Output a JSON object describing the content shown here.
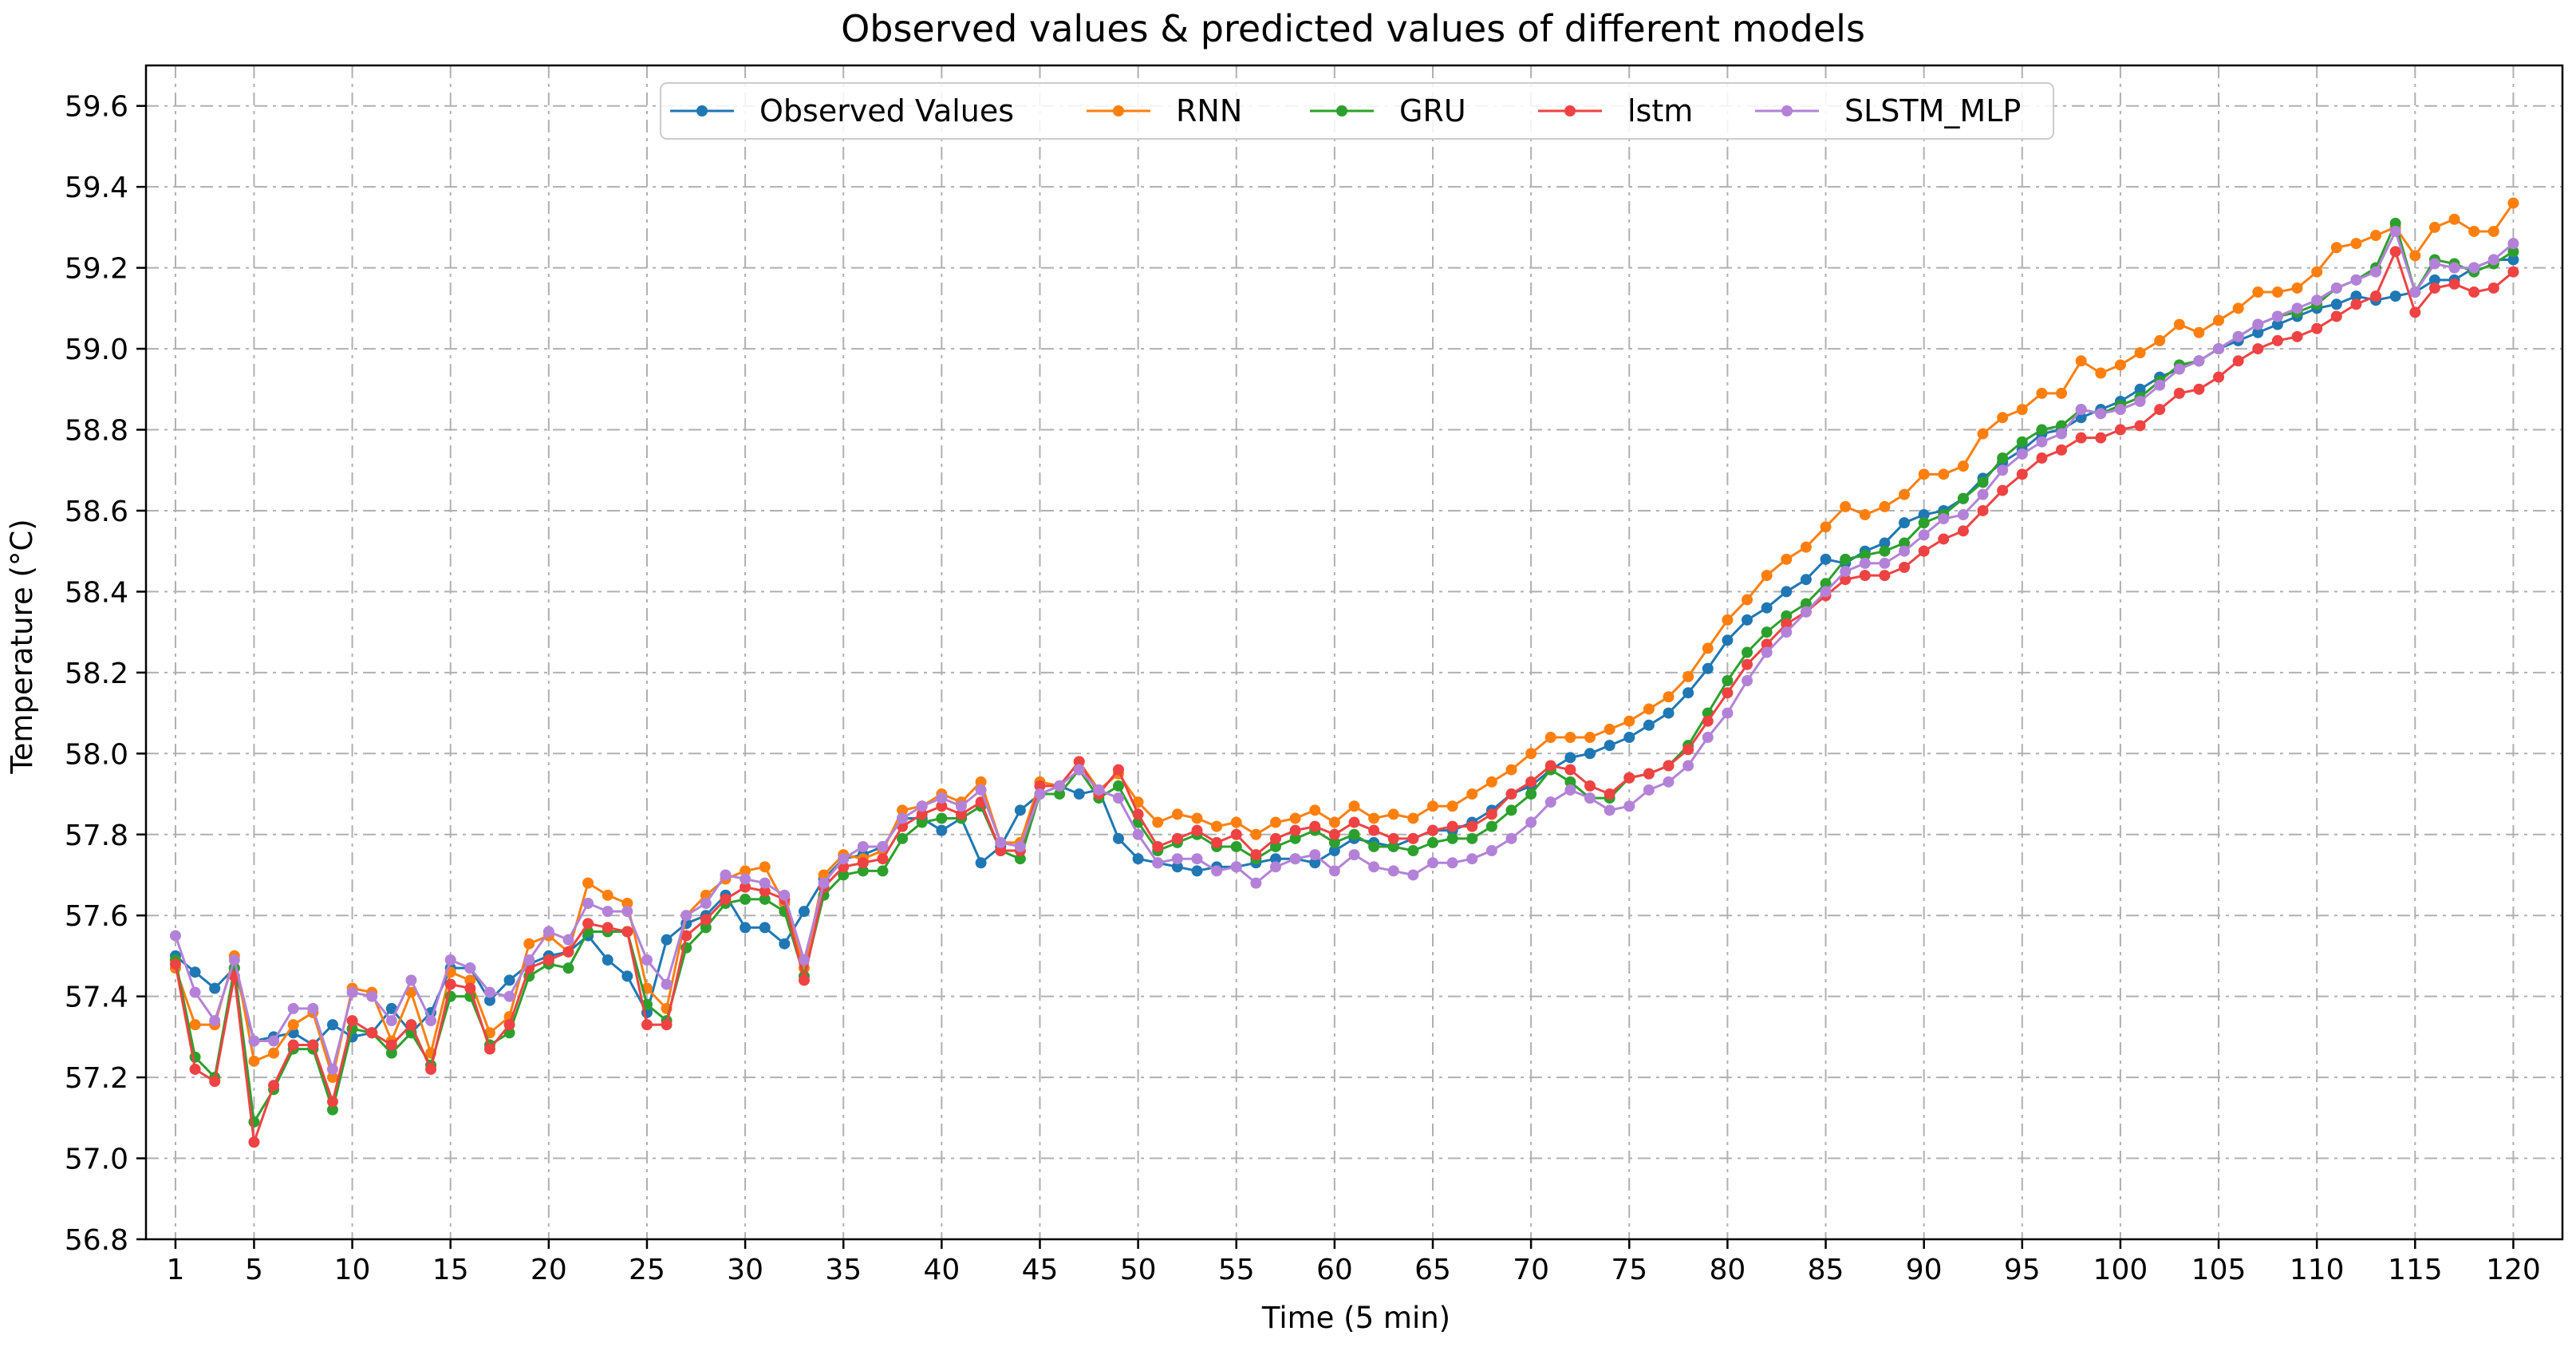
{
  "chart_data": {
    "type": "line",
    "title": "Observed values & predicted values of different models",
    "xlabel": "Time (5 min)",
    "ylabel": "Temperature (°C)",
    "xlim": [
      -0.5,
      122.5
    ],
    "ylim": [
      56.8,
      59.7
    ],
    "grid": true,
    "legend_position": "top-center",
    "x_ticks": [
      1,
      5,
      10,
      15,
      20,
      25,
      30,
      35,
      40,
      45,
      50,
      55,
      60,
      65,
      70,
      75,
      80,
      85,
      90,
      95,
      100,
      105,
      110,
      115,
      120
    ],
    "x_tick_labels": [
      "1",
      "5",
      "10",
      "15",
      "20",
      "25",
      "30",
      "35",
      "40",
      "45",
      "50",
      "55",
      "60",
      "65",
      "70",
      "75",
      "80",
      "85",
      "90",
      "95",
      "100",
      "105",
      "110",
      "115",
      "120"
    ],
    "y_ticks": [
      56.8,
      57.0,
      57.2,
      57.4,
      57.6,
      57.8,
      58.0,
      58.2,
      58.4,
      58.6,
      58.8,
      59.0,
      59.2,
      59.4,
      59.6
    ],
    "y_tick_labels": [
      "56.8",
      "57.0",
      "57.2",
      "57.4",
      "57.6",
      "57.8",
      "58.0",
      "58.2",
      "58.4",
      "58.6",
      "58.8",
      "59.0",
      "59.2",
      "59.4",
      "59.6"
    ],
    "x": [
      1,
      2,
      3,
      4,
      5,
      6,
      7,
      8,
      9,
      10,
      11,
      12,
      13,
      14,
      15,
      16,
      17,
      18,
      19,
      20,
      21,
      22,
      23,
      24,
      25,
      26,
      27,
      28,
      29,
      30,
      31,
      32,
      33,
      34,
      35,
      36,
      37,
      38,
      39,
      40,
      41,
      42,
      43,
      44,
      45,
      46,
      47,
      48,
      49,
      50,
      51,
      52,
      53,
      54,
      55,
      56,
      57,
      58,
      59,
      60,
      61,
      62,
      63,
      64,
      65,
      66,
      67,
      68,
      69,
      70,
      71,
      72,
      73,
      74,
      75,
      76,
      77,
      78,
      79,
      80,
      81,
      82,
      83,
      84,
      85,
      86,
      87,
      88,
      89,
      90,
      91,
      92,
      93,
      94,
      95,
      96,
      97,
      98,
      99,
      100,
      101,
      102,
      103,
      104,
      105,
      106,
      107,
      108,
      109,
      110,
      111,
      112,
      113,
      114,
      115,
      116,
      117,
      118,
      119,
      120
    ],
    "series": [
      {
        "name": "Observed Values",
        "color": "#1f77b4",
        "values": [
          57.5,
          57.46,
          57.42,
          57.47,
          57.29,
          57.3,
          57.31,
          57.28,
          57.33,
          57.3,
          57.31,
          57.37,
          57.31,
          57.36,
          57.47,
          57.47,
          57.39,
          57.44,
          57.48,
          57.5,
          57.51,
          57.55,
          57.49,
          57.45,
          57.36,
          57.54,
          57.58,
          57.6,
          57.65,
          57.57,
          57.57,
          57.53,
          57.61,
          57.69,
          57.74,
          57.75,
          57.77,
          57.84,
          57.84,
          57.81,
          57.84,
          57.73,
          57.77,
          57.86,
          57.9,
          57.92,
          57.9,
          57.91,
          57.79,
          57.74,
          57.73,
          57.72,
          57.71,
          57.72,
          57.72,
          57.73,
          57.74,
          57.74,
          57.73,
          57.76,
          57.79,
          57.78,
          57.77,
          57.79,
          57.81,
          57.81,
          57.83,
          57.86,
          57.9,
          57.92,
          57.96,
          57.99,
          58.0,
          58.02,
          58.04,
          58.07,
          58.1,
          58.15,
          58.21,
          58.28,
          58.33,
          58.36,
          58.4,
          58.43,
          58.48,
          58.47,
          58.5,
          58.52,
          58.57,
          58.59,
          58.6,
          58.63,
          58.68,
          58.72,
          58.75,
          58.79,
          58.8,
          58.83,
          58.85,
          58.87,
          58.9,
          58.93,
          58.95,
          58.97,
          59.0,
          59.02,
          59.04,
          59.06,
          59.08,
          59.1,
          59.11,
          59.13,
          59.12,
          59.13,
          59.14,
          59.17,
          59.17,
          59.2,
          59.22,
          59.22
        ]
      },
      {
        "name": "RNN",
        "color": "#ff7f0e",
        "values": [
          57.47,
          57.33,
          57.33,
          57.5,
          57.24,
          57.26,
          57.33,
          57.36,
          57.2,
          57.42,
          57.41,
          57.29,
          57.41,
          57.26,
          57.46,
          57.44,
          57.31,
          57.35,
          57.53,
          57.55,
          57.51,
          57.68,
          57.65,
          57.63,
          57.42,
          57.37,
          57.6,
          57.65,
          57.69,
          57.71,
          57.72,
          57.63,
          57.47,
          57.7,
          57.75,
          57.74,
          57.76,
          57.86,
          57.87,
          57.9,
          57.88,
          57.93,
          57.78,
          57.78,
          57.93,
          57.92,
          57.98,
          57.91,
          57.95,
          57.88,
          57.83,
          57.85,
          57.84,
          57.82,
          57.83,
          57.8,
          57.83,
          57.84,
          57.86,
          57.83,
          57.87,
          57.84,
          57.85,
          57.84,
          57.87,
          57.87,
          57.9,
          57.93,
          57.96,
          58.0,
          58.04,
          58.04,
          58.04,
          58.06,
          58.08,
          58.11,
          58.14,
          58.19,
          58.26,
          58.33,
          58.38,
          58.44,
          58.48,
          58.51,
          58.56,
          58.61,
          58.59,
          58.61,
          58.64,
          58.69,
          58.69,
          58.71,
          58.79,
          58.83,
          58.85,
          58.89,
          58.89,
          58.97,
          58.94,
          58.96,
          58.99,
          59.02,
          59.06,
          59.04,
          59.07,
          59.1,
          59.14,
          59.14,
          59.15,
          59.19,
          59.25,
          59.26,
          59.28,
          59.3,
          59.23,
          59.3,
          59.32,
          59.29,
          59.29,
          59.36
        ]
      },
      {
        "name": "GRU",
        "color": "#2ca02c",
        "values": [
          57.49,
          57.25,
          57.2,
          57.47,
          57.09,
          57.17,
          57.27,
          57.27,
          57.12,
          57.32,
          57.31,
          57.26,
          57.31,
          57.23,
          57.4,
          57.4,
          57.28,
          57.31,
          57.45,
          57.48,
          57.47,
          57.56,
          57.56,
          57.56,
          57.38,
          57.34,
          57.52,
          57.57,
          57.63,
          57.64,
          57.64,
          57.61,
          57.45,
          57.65,
          57.7,
          57.71,
          57.71,
          57.79,
          57.83,
          57.84,
          57.84,
          57.87,
          57.76,
          57.74,
          57.9,
          57.9,
          57.96,
          57.89,
          57.92,
          57.83,
          57.76,
          57.78,
          57.8,
          57.77,
          57.77,
          57.74,
          57.77,
          57.79,
          57.81,
          57.78,
          57.8,
          57.77,
          57.77,
          57.76,
          57.78,
          57.79,
          57.79,
          57.82,
          57.86,
          57.9,
          57.96,
          57.93,
          57.89,
          57.89,
          57.94,
          57.95,
          57.97,
          58.02,
          58.1,
          58.18,
          58.25,
          58.3,
          58.34,
          58.37,
          58.42,
          58.48,
          58.49,
          58.5,
          58.52,
          58.57,
          58.59,
          58.63,
          58.67,
          58.73,
          58.77,
          58.8,
          58.81,
          58.85,
          58.84,
          58.86,
          58.88,
          58.92,
          58.96,
          58.97,
          59.0,
          59.03,
          59.06,
          59.08,
          59.09,
          59.11,
          59.15,
          59.17,
          59.2,
          59.31,
          59.14,
          59.22,
          59.21,
          59.19,
          59.21,
          59.24
        ]
      },
      {
        "name": "lstm",
        "color": "#ef4242",
        "values": [
          57.48,
          57.22,
          57.19,
          57.45,
          57.04,
          57.18,
          57.28,
          57.28,
          57.14,
          57.34,
          57.31,
          57.28,
          57.33,
          57.22,
          57.43,
          57.42,
          57.27,
          57.33,
          57.47,
          57.49,
          57.51,
          57.58,
          57.57,
          57.56,
          57.33,
          57.33,
          57.55,
          57.59,
          57.64,
          57.67,
          57.66,
          57.64,
          57.44,
          57.67,
          57.72,
          57.73,
          57.74,
          57.82,
          57.85,
          57.87,
          57.85,
          57.88,
          57.76,
          57.76,
          57.92,
          57.92,
          57.98,
          57.9,
          57.96,
          57.85,
          57.77,
          57.79,
          57.81,
          57.78,
          57.8,
          57.75,
          57.79,
          57.81,
          57.82,
          57.8,
          57.83,
          57.81,
          57.79,
          57.79,
          57.81,
          57.82,
          57.82,
          57.85,
          57.9,
          57.93,
          57.97,
          57.96,
          57.92,
          57.9,
          57.94,
          57.95,
          57.97,
          58.01,
          58.08,
          58.15,
          58.22,
          58.27,
          58.32,
          58.35,
          58.39,
          58.43,
          58.44,
          58.44,
          58.46,
          58.5,
          58.53,
          58.55,
          58.6,
          58.65,
          58.69,
          58.73,
          58.75,
          58.78,
          58.78,
          58.8,
          58.81,
          58.85,
          58.89,
          58.9,
          58.93,
          58.97,
          59.0,
          59.02,
          59.03,
          59.05,
          59.08,
          59.11,
          59.13,
          59.24,
          59.09,
          59.15,
          59.16,
          59.14,
          59.15,
          59.19
        ]
      },
      {
        "name": "SLSTM_MLP",
        "color": "#b382d8",
        "values": [
          57.55,
          57.41,
          57.34,
          57.49,
          57.29,
          57.29,
          57.37,
          57.37,
          57.22,
          57.41,
          57.4,
          57.34,
          57.44,
          57.34,
          57.49,
          57.47,
          57.41,
          57.4,
          57.49,
          57.56,
          57.54,
          57.63,
          57.61,
          57.61,
          57.49,
          57.43,
          57.6,
          57.63,
          57.7,
          57.69,
          57.68,
          57.65,
          57.49,
          57.68,
          57.74,
          57.77,
          57.77,
          57.84,
          57.87,
          57.89,
          57.87,
          57.91,
          57.78,
          57.77,
          57.9,
          57.92,
          57.96,
          57.91,
          57.89,
          57.8,
          57.73,
          57.74,
          57.74,
          57.71,
          57.72,
          57.68,
          57.72,
          57.74,
          57.75,
          57.71,
          57.75,
          57.72,
          57.71,
          57.7,
          57.73,
          57.73,
          57.74,
          57.76,
          57.79,
          57.83,
          57.88,
          57.91,
          57.89,
          57.86,
          57.87,
          57.91,
          57.93,
          57.97,
          58.04,
          58.1,
          58.18,
          58.25,
          58.3,
          58.35,
          58.4,
          58.45,
          58.47,
          58.47,
          58.5,
          58.54,
          58.58,
          58.59,
          58.64,
          58.7,
          58.74,
          58.77,
          58.79,
          58.85,
          58.84,
          58.85,
          58.87,
          58.91,
          58.95,
          58.97,
          59.0,
          59.03,
          59.06,
          59.08,
          59.1,
          59.12,
          59.15,
          59.17,
          59.19,
          59.29,
          59.14,
          59.21,
          59.2,
          59.2,
          59.22,
          59.26
        ]
      }
    ]
  }
}
